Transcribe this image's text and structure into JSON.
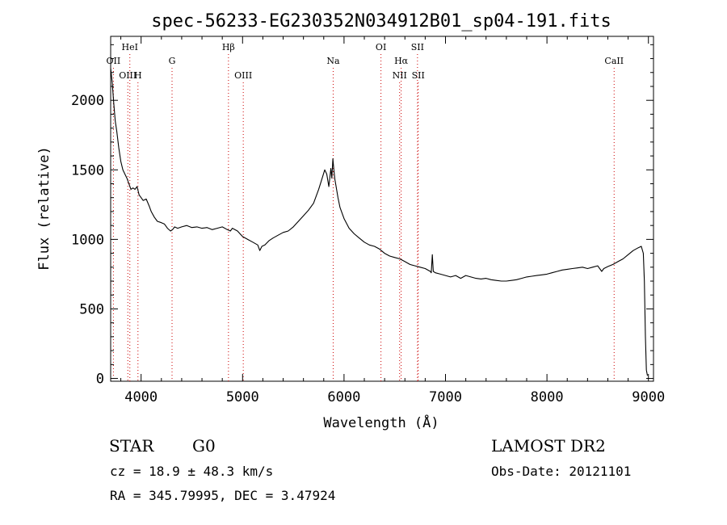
{
  "chart_data": {
    "type": "line",
    "title": "spec-56233-EG230352N034912B01_sp04-191.fits",
    "xlabel": "Wavelength (Å)",
    "ylabel": "Flux (relative)",
    "xlim": [
      3700,
      9050
    ],
    "ylim": [
      -20,
      2460
    ],
    "xticks": [
      4000,
      5000,
      6000,
      7000,
      8000,
      9000
    ],
    "yticks": [
      0,
      500,
      1000,
      1500,
      2000
    ],
    "grid": false,
    "series": [
      {
        "x": [
          3700,
          3715,
          3730,
          3745,
          3760,
          3780,
          3800,
          3820,
          3840,
          3860,
          3880,
          3900,
          3920,
          3940,
          3960,
          3980,
          4000,
          4020,
          4050,
          4080,
          4100,
          4130,
          4160,
          4200,
          4230,
          4260,
          4290,
          4310,
          4330,
          4360,
          4400,
          4450,
          4500,
          4550,
          4600,
          4650,
          4700,
          4750,
          4800,
          4850,
          4880,
          4900,
          4950,
          5000,
          5050,
          5100,
          5150,
          5170,
          5190,
          5220,
          5260,
          5300,
          5350,
          5400,
          5450,
          5500,
          5550,
          5600,
          5650,
          5700,
          5750,
          5780,
          5810,
          5830,
          5850,
          5870,
          5880,
          5890,
          5895,
          5900,
          5910,
          5920,
          5940,
          5960,
          6000,
          6050,
          6100,
          6150,
          6200,
          6250,
          6300,
          6350,
          6400,
          6450,
          6500,
          6550,
          6600,
          6650,
          6700,
          6750,
          6800,
          6850,
          6860,
          6870,
          6880,
          6900,
          6950,
          7000,
          7050,
          7100,
          7150,
          7200,
          7250,
          7300,
          7350,
          7400,
          7450,
          7500,
          7550,
          7600,
          7650,
          7700,
          7750,
          7800,
          7850,
          7900,
          7950,
          8000,
          8050,
          8100,
          8150,
          8200,
          8250,
          8300,
          8350,
          8400,
          8450,
          8500,
          8540,
          8560,
          8600,
          8650,
          8700,
          8750,
          8800,
          8850,
          8900,
          8930,
          8950,
          8960,
          8970,
          8980,
          8990
        ],
        "y": [
          2230,
          2130,
          1980,
          1850,
          1780,
          1660,
          1560,
          1500,
          1470,
          1440,
          1400,
          1360,
          1370,
          1360,
          1380,
          1320,
          1300,
          1280,
          1290,
          1240,
          1200,
          1160,
          1130,
          1120,
          1110,
          1080,
          1060,
          1070,
          1090,
          1080,
          1090,
          1100,
          1085,
          1090,
          1080,
          1085,
          1070,
          1080,
          1090,
          1070,
          1060,
          1080,
          1060,
          1020,
          1000,
          980,
          960,
          920,
          950,
          960,
          990,
          1010,
          1030,
          1050,
          1060,
          1090,
          1130,
          1170,
          1210,
          1260,
          1360,
          1430,
          1500,
          1470,
          1380,
          1510,
          1440,
          1580,
          1540,
          1500,
          1430,
          1390,
          1300,
          1230,
          1150,
          1080,
          1040,
          1010,
          980,
          960,
          950,
          930,
          900,
          880,
          870,
          860,
          840,
          820,
          810,
          800,
          790,
          770,
          760,
          890,
          770,
          760,
          750,
          740,
          730,
          740,
          720,
          740,
          730,
          720,
          715,
          720,
          710,
          705,
          700,
          700,
          705,
          710,
          720,
          730,
          735,
          740,
          745,
          750,
          760,
          770,
          780,
          785,
          790,
          795,
          800,
          790,
          800,
          810,
          770,
          790,
          805,
          820,
          840,
          860,
          890,
          920,
          940,
          950,
          900,
          700,
          300,
          60,
          20
        ]
      }
    ],
    "line_markers": [
      {
        "name": "OII",
        "x": 3727,
        "row": 2
      },
      {
        "name": "HeI",
        "x": 3889,
        "row": 1
      },
      {
        "name": "OIII",
        "x": 3869,
        "row": 3
      },
      {
        "name": "H",
        "x": 3969,
        "row": 3
      },
      {
        "name": "G",
        "x": 4305,
        "row": 2
      },
      {
        "name": "Hβ",
        "x": 4861,
        "row": 1
      },
      {
        "name": "OIII",
        "x": 5007,
        "row": 3
      },
      {
        "name": "Na",
        "x": 5893,
        "row": 2
      },
      {
        "name": "OI",
        "x": 6364,
        "row": 1
      },
      {
        "name": "Hα",
        "x": 6563,
        "row": 2
      },
      {
        "name": "NII",
        "x": 6548,
        "row": 3
      },
      {
        "name": "SII",
        "x": 6724,
        "row": 1
      },
      {
        "name": "SII",
        "x": 6731,
        "row": 3
      },
      {
        "name": "CaII",
        "x": 8662,
        "row": 2
      }
    ],
    "line_color": "#000000",
    "marker_color": "#cc0000"
  },
  "info": {
    "star_type": "STAR",
    "star_class": "G0",
    "survey": "LAMOST DR2",
    "cz": "cz = 18.9 ± 48.3 km/s",
    "obs_date": "Obs-Date: 20121101",
    "coords": "RA = 345.79995, DEC =   3.47924"
  }
}
